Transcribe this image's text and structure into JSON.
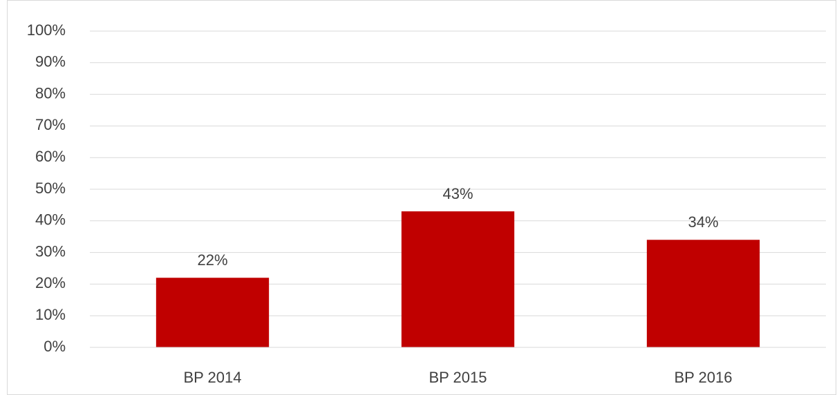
{
  "chart_data": {
    "type": "bar",
    "categories": [
      "BP 2014",
      "BP 2015",
      "BP 2016"
    ],
    "values": [
      22,
      43,
      34
    ],
    "value_labels": [
      "22%",
      "43%",
      "34%"
    ],
    "color": "#c00000",
    "ylim": [
      0,
      100
    ],
    "yticks": [
      {
        "value": 0,
        "label": "0%"
      },
      {
        "value": 10,
        "label": "10%"
      },
      {
        "value": 20,
        "label": "20%"
      },
      {
        "value": 30,
        "label": "30%"
      },
      {
        "value": 40,
        "label": "40%"
      },
      {
        "value": 50,
        "label": "50%"
      },
      {
        "value": 60,
        "label": "60%"
      },
      {
        "value": 70,
        "label": "70%"
      },
      {
        "value": 80,
        "label": "80%"
      },
      {
        "value": 90,
        "label": "90%"
      },
      {
        "value": 100,
        "label": "100%"
      }
    ],
    "grid": true
  }
}
